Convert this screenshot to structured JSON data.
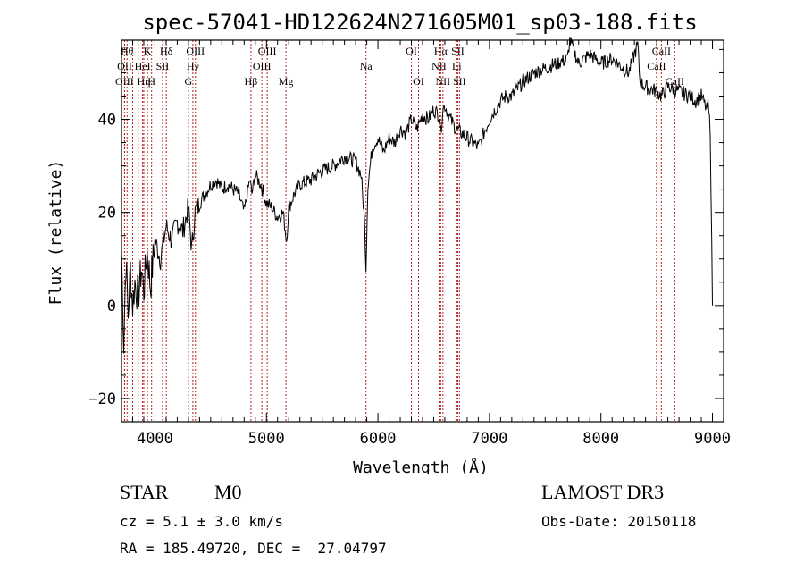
{
  "chart_data": {
    "type": "line",
    "title": "spec-57041-HD122624N271605M01_sp03-188.fits",
    "xlabel": "Wavelength (Å)",
    "ylabel": "Flux (relative)",
    "xlim": [
      3700,
      9100
    ],
    "ylim": [
      -25,
      57
    ],
    "xticks": [
      4000,
      5000,
      6000,
      7000,
      8000,
      9000
    ],
    "yticks": [
      -20,
      0,
      20,
      40
    ],
    "series": [
      {
        "x": [
          3700,
          3720,
          3740,
          3760,
          3780,
          3800,
          3820,
          3850,
          3880,
          3900,
          3930,
          3960,
          4000,
          4050,
          4100,
          4150,
          4200,
          4250,
          4300,
          4330,
          4360,
          4400,
          4450,
          4500,
          4550,
          4600,
          4650,
          4700,
          4750,
          4800,
          4850,
          4870,
          4900,
          4950,
          5000,
          5050,
          5100,
          5150,
          5180,
          5200,
          5250,
          5300,
          5400,
          5500,
          5600,
          5700,
          5800,
          5850,
          5880,
          5893,
          5910,
          5950,
          6000,
          6050,
          6100,
          6150,
          6200,
          6250,
          6300,
          6350,
          6400,
          6450,
          6500,
          6550,
          6563,
          6580,
          6600,
          6650,
          6700,
          6750,
          6800,
          6850,
          6900,
          6950,
          7000,
          7050,
          7100,
          7150,
          7200,
          7300,
          7400,
          7500,
          7600,
          7700,
          7720,
          7800,
          7900,
          8000,
          8100,
          8200,
          8250,
          8300,
          8330,
          8350,
          8400,
          8500,
          8542,
          8600,
          8700,
          8800,
          8850,
          8900,
          8950,
          8960,
          8980,
          9000
        ],
        "y": [
          12,
          -8,
          10,
          -2,
          8,
          0,
          5,
          2,
          8,
          3,
          12,
          4,
          14,
          10,
          17,
          14,
          18,
          16,
          21,
          12,
          20,
          22,
          24,
          26,
          27,
          25,
          26,
          25,
          24,
          20,
          27,
          24,
          28,
          26,
          22,
          21,
          19,
          20,
          14,
          21,
          24,
          26,
          27,
          29,
          30,
          32,
          31,
          28,
          18,
          8,
          26,
          34,
          36,
          33,
          36,
          35,
          38,
          37,
          40,
          38,
          41,
          40,
          42,
          41,
          37,
          42,
          43,
          40,
          38,
          37,
          36,
          35,
          34,
          37,
          40,
          42,
          44,
          45,
          45,
          48,
          50,
          51,
          52,
          53,
          57,
          52,
          54,
          52,
          53,
          51,
          50,
          54,
          56,
          48,
          47,
          46,
          45,
          47,
          46,
          45,
          44,
          45,
          42,
          43,
          38,
          0
        ],
        "noise": 1.6
      }
    ],
    "lines": [
      {
        "x": 3750,
        "label": "Hθ",
        "row": 0
      },
      {
        "x": 3728,
        "label": "OII",
        "row": 1
      },
      {
        "x": 3727,
        "label": "OIII",
        "row": 2
      },
      {
        "x": 3800,
        "label": "",
        "row": -1
      },
      {
        "x": 3850,
        "label": "",
        "row": -1
      },
      {
        "x": 3889,
        "label": "HeI",
        "row": 1
      },
      {
        "x": 3933,
        "label": "K",
        "row": 0
      },
      {
        "x": 3970,
        "label": "H",
        "row": 2
      },
      {
        "x": 4102,
        "label": "Hδ",
        "row": 0
      },
      {
        "x": 4068,
        "label": "SII",
        "row": 1
      },
      {
        "x": 3900,
        "label": "Hη",
        "row": 2
      },
      {
        "x": 4300,
        "label": "G",
        "row": 2
      },
      {
        "x": 4340,
        "label": "Hγ",
        "row": 1
      },
      {
        "x": 4363,
        "label": "OIII",
        "row": 0
      },
      {
        "x": 4861,
        "label": "Hβ",
        "row": 2
      },
      {
        "x": 4959,
        "label": "OIII",
        "row": 1
      },
      {
        "x": 5007,
        "label": "OIII",
        "row": 0
      },
      {
        "x": 5175,
        "label": "Mg",
        "row": 2
      },
      {
        "x": 5893,
        "label": "Na",
        "row": 1
      },
      {
        "x": 6300,
        "label": "OI",
        "row": 0
      },
      {
        "x": 6364,
        "label": "OI",
        "row": 2
      },
      {
        "x": 6548,
        "label": "NII",
        "row": 1
      },
      {
        "x": 6563,
        "label": "Hα",
        "row": 0
      },
      {
        "x": 6583,
        "label": "NII",
        "row": 2
      },
      {
        "x": 6707,
        "label": "Li",
        "row": 1
      },
      {
        "x": 6716,
        "label": "SII",
        "row": 0
      },
      {
        "x": 6731,
        "label": "SII",
        "row": 2
      },
      {
        "x": 8498,
        "label": "CaII",
        "row": 1
      },
      {
        "x": 8542,
        "label": "CaII",
        "row": 0
      },
      {
        "x": 8662,
        "label": "CaII",
        "row": 2
      }
    ]
  },
  "info": {
    "class": "STAR",
    "subclass": "M0",
    "survey": "LAMOST DR3",
    "cz": "cz = 5.1 ± 3.0 km/s",
    "obsdate": "Obs-Date: 20150118",
    "radec": "RA = 185.49720, DEC =  27.04797"
  },
  "colors": {
    "spectrum": "#000000",
    "lines": "#b22222",
    "axes": "#000000"
  }
}
